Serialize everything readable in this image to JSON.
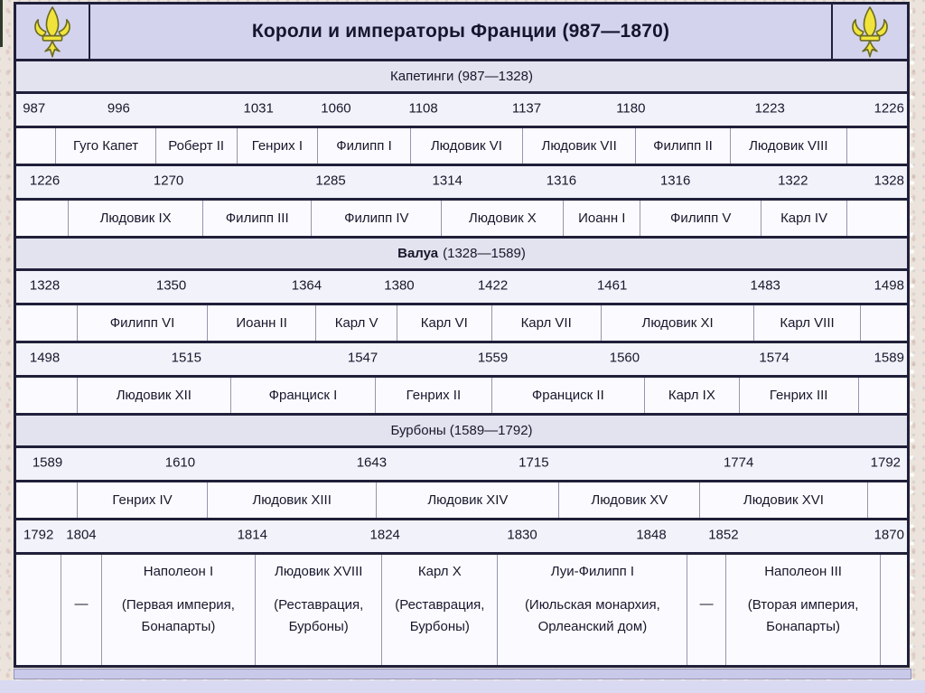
{
  "header": {
    "title": "Короли и императоры Франции (987—1870)"
  },
  "icons": {
    "header_left": "fleur-de-lis",
    "header_right": "fleur-de-lis"
  },
  "colors": {
    "header_bg": "#d3d3ee",
    "section_bg": "#e3e3ef",
    "years_bg": "#f2f2fa",
    "names_bg": "#fbfbff",
    "separator": "#20203a",
    "cell_border": "#9595af",
    "fleur_fill": "#f0e43c",
    "fleur_outline": "#6b6b22",
    "footer_strip": "#c9c9e9",
    "footer_band": "#d9d9f2",
    "page_bg": "#ece4dc"
  },
  "timeline": {
    "rows": [
      {
        "type": "section",
        "bold": "",
        "rest": "Капетинги (987—1328)"
      },
      {
        "type": "years",
        "items": [
          {
            "label": "987",
            "x": 2
          },
          {
            "label": "996",
            "x": 11.5
          },
          {
            "label": "1031",
            "x": 27.2
          },
          {
            "label": "1060",
            "x": 35.9
          },
          {
            "label": "1108",
            "x": 45.7
          },
          {
            "label": "1137",
            "x": 57.3
          },
          {
            "label": "1180",
            "x": 69
          },
          {
            "label": "1223",
            "x": 84.6
          },
          {
            "label": "1226",
            "x": 98
          }
        ]
      },
      {
        "type": "names",
        "cells": [
          {
            "t": "",
            "w": 4.4
          },
          {
            "t": "Гуго Капет",
            "w": 11.2
          },
          {
            "t": "Роберт II",
            "w": 9.1
          },
          {
            "t": "Генрих I",
            "w": 9.1
          },
          {
            "t": "Филипп I",
            "w": 10.4
          },
          {
            "t": "Людовик VI",
            "w": 12.6
          },
          {
            "t": "Людовик VII",
            "w": 12.7
          },
          {
            "t": "Филипп II",
            "w": 10.6
          },
          {
            "t": "Людовик VIII",
            "w": 13.1
          },
          {
            "t": "",
            "w": 6.8
          }
        ]
      },
      {
        "type": "years",
        "items": [
          {
            "label": "1226",
            "x": 3.2
          },
          {
            "label": "1270",
            "x": 17.1
          },
          {
            "label": "1285",
            "x": 35.3
          },
          {
            "label": "1314",
            "x": 48.4
          },
          {
            "label": "1316",
            "x": 61.2
          },
          {
            "label": "1316",
            "x": 74
          },
          {
            "label": "1322",
            "x": 87.2
          },
          {
            "label": "1328",
            "x": 98
          }
        ]
      },
      {
        "type": "names",
        "cells": [
          {
            "t": "",
            "w": 5.8
          },
          {
            "t": "Людовик IX",
            "w": 15.1
          },
          {
            "t": "Филипп III",
            "w": 12.2
          },
          {
            "t": "Филипп IV",
            "w": 14.6
          },
          {
            "t": "Людовик X",
            "w": 13.7
          },
          {
            "t": "Иоанн I",
            "w": 8.6
          },
          {
            "t": "Филипп V",
            "w": 13.6
          },
          {
            "t": "Карл IV",
            "w": 9.6
          },
          {
            "t": "",
            "w": 6.8
          }
        ]
      },
      {
        "type": "section",
        "bold": "Валуа",
        "rest": "(1328—1589)"
      },
      {
        "type": "years",
        "items": [
          {
            "label": "1328",
            "x": 3.2
          },
          {
            "label": "1350",
            "x": 17.4
          },
          {
            "label": "1364",
            "x": 32.6
          },
          {
            "label": "1380",
            "x": 43
          },
          {
            "label": "1422",
            "x": 53.5
          },
          {
            "label": "1461",
            "x": 66.9
          },
          {
            "label": "1483",
            "x": 84.1
          },
          {
            "label": "1498",
            "x": 98
          }
        ]
      },
      {
        "type": "names",
        "cells": [
          {
            "t": "",
            "w": 6.8
          },
          {
            "t": "Филипп VI",
            "w": 14.6
          },
          {
            "t": "Иоанн II",
            "w": 12.2
          },
          {
            "t": "Карл V",
            "w": 9.1
          },
          {
            "t": "Карл VI",
            "w": 10.6
          },
          {
            "t": "Карл VII",
            "w": 12.3
          },
          {
            "t": "Людовик XI",
            "w": 17.2
          },
          {
            "t": "Карл VIII",
            "w": 11.9
          },
          {
            "t": "",
            "w": 5.3
          }
        ]
      },
      {
        "type": "years",
        "items": [
          {
            "label": "1498",
            "x": 3.2
          },
          {
            "label": "1515",
            "x": 19.1
          },
          {
            "label": "1547",
            "x": 38.9
          },
          {
            "label": "1559",
            "x": 53.5
          },
          {
            "label": "1560",
            "x": 68.3
          },
          {
            "label": "1574",
            "x": 85.1
          },
          {
            "label": "1589",
            "x": 98
          }
        ]
      },
      {
        "type": "names",
        "cells": [
          {
            "t": "",
            "w": 6.8
          },
          {
            "t": "Людовик XII",
            "w": 17.2
          },
          {
            "t": "Франциск I",
            "w": 16.3
          },
          {
            "t": "Генрих II",
            "w": 13
          },
          {
            "t": "Франциск II",
            "w": 17.2
          },
          {
            "t": "Карл IX",
            "w": 10.6
          },
          {
            "t": "Генрих III",
            "w": 13.4
          },
          {
            "t": "",
            "w": 5.5
          }
        ]
      },
      {
        "type": "section",
        "bold": "",
        "rest": "Бурбоны (1589—1792)"
      },
      {
        "type": "years",
        "items": [
          {
            "label": "1589",
            "x": 3.5
          },
          {
            "label": "1610",
            "x": 18.4
          },
          {
            "label": "1643",
            "x": 39.9
          },
          {
            "label": "1715",
            "x": 58.1
          },
          {
            "label": "1774",
            "x": 81.1
          },
          {
            "label": "1792",
            "x": 97.6
          }
        ]
      },
      {
        "type": "names",
        "cells": [
          {
            "t": "",
            "w": 6.8
          },
          {
            "t": "Генрих IV",
            "w": 14.6
          },
          {
            "t": "Людовик XIII",
            "w": 19
          },
          {
            "t": "Людовик XIV",
            "w": 20.5
          },
          {
            "t": "Людовик XV",
            "w": 15.8
          },
          {
            "t": "Людовик XVI",
            "w": 18.8
          },
          {
            "t": "",
            "w": 4.5
          }
        ]
      },
      {
        "type": "years",
        "items": [
          {
            "label": "1792",
            "x": 2.5
          },
          {
            "label": "1804",
            "x": 7.3
          },
          {
            "label": "1814",
            "x": 26.5
          },
          {
            "label": "1824",
            "x": 41.4
          },
          {
            "label": "1830",
            "x": 56.8
          },
          {
            "label": "1848",
            "x": 71.3
          },
          {
            "label": "1852",
            "x": 79.4
          },
          {
            "label": "1870",
            "x": 98
          }
        ]
      },
      {
        "type": "reigns",
        "cells": [
          {
            "w": 5
          },
          {
            "dash": "—",
            "w": 4.5
          },
          {
            "name": "Наполеон I",
            "desc": "(Первая империя, Бонапарты)",
            "w": 17.3
          },
          {
            "name": "Людовик XVIII",
            "desc": "(Реставрация, Бурбоны)",
            "w": 14.2
          },
          {
            "name": "Карл X",
            "desc": "(Реставрация, Бурбоны)",
            "w": 13
          },
          {
            "name": "Луи-Филипп I",
            "desc": "(Июльская монархия, Орлеанский дом)",
            "w": 21.3
          },
          {
            "dash": "—",
            "w": 4.3
          },
          {
            "name": "Наполеон III",
            "desc": "(Вторая империя, Бонапарты)",
            "w": 17.4
          },
          {
            "w": 3
          }
        ]
      }
    ]
  }
}
